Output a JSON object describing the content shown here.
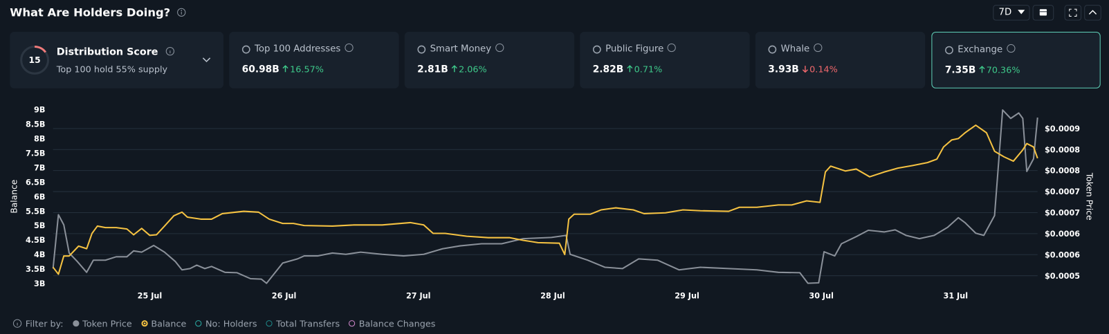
{
  "header": {
    "title": "What Are Holders Doing?",
    "period": "7D"
  },
  "distribution": {
    "score": 15,
    "title": "Distribution Score",
    "subtitle": "Top 100 hold 55% supply"
  },
  "cards": [
    {
      "label": "Top 100 Addresses",
      "value": "60.98B",
      "change": "16.57%",
      "direction": "up"
    },
    {
      "label": "Smart Money",
      "value": "2.81B",
      "change": "2.06%",
      "direction": "up"
    },
    {
      "label": "Public Figure",
      "value": "2.82B",
      "change": "0.71%",
      "direction": "up"
    },
    {
      "label": "Whale",
      "value": "3.93B",
      "change": "0.14%",
      "direction": "down"
    },
    {
      "label": "Exchange",
      "value": "7.35B",
      "change": "70.36%",
      "direction": "up"
    }
  ],
  "chart_data": {
    "type": "line",
    "ylabel": "Balance",
    "y2label": "Token Price",
    "xlim": [
      24.28,
      31.61
    ],
    "xticks": [
      {
        "value": 25,
        "label": "25 Jul"
      },
      {
        "value": 26,
        "label": "26 Jul"
      },
      {
        "value": 27,
        "label": "27 Jul"
      },
      {
        "value": 28,
        "label": "28 Jul"
      },
      {
        "value": 29,
        "label": "29 Jul"
      },
      {
        "value": 30,
        "label": "30 Jul"
      },
      {
        "value": 31,
        "label": "31 Jul"
      }
    ],
    "ylim": [
      3,
      9
    ],
    "yticks": [
      {
        "value": 3,
        "label": "3B"
      },
      {
        "value": 3.5,
        "label": "3.5B"
      },
      {
        "value": 4,
        "label": "4B"
      },
      {
        "value": 4.5,
        "label": "4.5B"
      },
      {
        "value": 5,
        "label": "5B"
      },
      {
        "value": 5.5,
        "label": "5.5B"
      },
      {
        "value": 6,
        "label": "6B"
      },
      {
        "value": 6.5,
        "label": "6.5B"
      },
      {
        "value": 7,
        "label": "7B"
      },
      {
        "value": 7.5,
        "label": "7.5B"
      },
      {
        "value": 8,
        "label": "8B"
      },
      {
        "value": 8.5,
        "label": "8.5B"
      },
      {
        "value": 9,
        "label": "9B"
      }
    ],
    "y2lim": [
      0.0005015,
      0.000915
    ],
    "y2ticks": [
      {
        "value": 0.00052,
        "label": "$0.0005"
      },
      {
        "value": 0.00057,
        "label": "$0.0006"
      },
      {
        "value": 0.00062,
        "label": "$0.0006"
      },
      {
        "value": 0.00067,
        "label": "$0.0007"
      },
      {
        "value": 0.00072,
        "label": "$0.0007"
      },
      {
        "value": 0.00077,
        "label": "$0.0008"
      },
      {
        "value": 0.00082,
        "label": "$0.0008"
      },
      {
        "value": 0.00087,
        "label": "$0.0009"
      }
    ],
    "grid": true,
    "series": [
      {
        "name": "Token Price",
        "color": "#8a9099",
        "axis": "y2",
        "x": [
          24.28,
          24.32,
          24.36,
          24.4,
          24.46,
          24.53,
          24.58,
          24.67,
          24.75,
          24.83,
          24.88,
          24.94,
          25.03,
          25.11,
          25.19,
          25.24,
          25.3,
          25.35,
          25.41,
          25.46,
          25.56,
          25.65,
          25.75,
          25.83,
          25.87,
          25.99,
          26.1,
          26.15,
          26.25,
          26.36,
          26.46,
          26.57,
          26.73,
          26.89,
          27.04,
          27.18,
          27.31,
          27.47,
          27.62,
          27.78,
          27.99,
          28.1,
          28.13,
          28.26,
          28.39,
          28.52,
          28.64,
          28.78,
          28.94,
          29.1,
          29.31,
          29.52,
          29.68,
          29.84,
          29.9,
          29.98,
          30.02,
          30.1,
          30.15,
          30.26,
          30.35,
          30.47,
          30.55,
          30.63,
          30.73,
          30.84,
          30.94,
          31.02,
          31.07,
          31.15,
          31.21,
          31.29,
          31.35,
          31.41,
          31.47,
          31.5,
          31.53,
          31.58,
          31.61
        ],
        "values": [
          0.000537,
          0.000665,
          0.000641,
          0.000574,
          0.000554,
          0.000528,
          0.000557,
          0.000557,
          0.000565,
          0.000565,
          0.000579,
          0.000576,
          0.000592,
          0.000576,
          0.000554,
          0.000534,
          0.000537,
          0.000545,
          0.000537,
          0.000542,
          0.000528,
          0.000527,
          0.000513,
          0.000512,
          0.000502,
          0.00055,
          0.00056,
          0.000567,
          0.000567,
          0.000574,
          0.000571,
          0.000576,
          0.000571,
          0.000567,
          0.000571,
          0.000584,
          0.000591,
          0.000596,
          0.000596,
          0.000608,
          0.000611,
          0.000616,
          0.000571,
          0.000557,
          0.00054,
          0.000537,
          0.00056,
          0.000557,
          0.000534,
          0.00054,
          0.000537,
          0.000534,
          0.000528,
          0.000527,
          0.000502,
          0.000503,
          0.000577,
          0.000567,
          0.000596,
          0.000613,
          0.000628,
          0.000624,
          0.000629,
          0.000616,
          0.000608,
          0.000616,
          0.000635,
          0.000658,
          0.000646,
          0.000621,
          0.000616,
          0.000663,
          0.000914,
          0.000894,
          0.000907,
          0.000894,
          0.000768,
          0.000798,
          0.000896
        ]
      },
      {
        "name": "Balance",
        "color": "#f5c242",
        "axis": "y",
        "x": [
          24.28,
          24.32,
          24.36,
          24.4,
          24.47,
          24.53,
          24.57,
          24.61,
          24.67,
          24.75,
          24.83,
          24.88,
          24.94,
          25.0,
          25.05,
          25.11,
          25.18,
          25.24,
          25.28,
          25.38,
          25.46,
          25.54,
          25.7,
          25.81,
          25.89,
          25.99,
          26.07,
          26.15,
          26.36,
          26.52,
          26.73,
          26.94,
          27.04,
          27.11,
          27.2,
          27.36,
          27.52,
          27.68,
          27.78,
          27.89,
          28.05,
          28.09,
          28.12,
          28.16,
          28.28,
          28.36,
          28.47,
          28.6,
          28.68,
          28.84,
          28.97,
          29.1,
          29.31,
          29.39,
          29.52,
          29.68,
          29.78,
          29.89,
          29.99,
          30.03,
          30.07,
          30.18,
          30.26,
          30.36,
          30.47,
          30.57,
          30.68,
          30.79,
          30.86,
          30.91,
          30.97,
          31.02,
          31.07,
          31.15,
          31.23,
          31.29,
          31.36,
          31.43,
          31.5,
          31.53,
          31.58,
          31.61
        ],
        "values": [
          3.56,
          3.32,
          3.95,
          3.95,
          4.29,
          4.2,
          4.73,
          4.98,
          4.93,
          4.93,
          4.88,
          4.68,
          4.9,
          4.66,
          4.68,
          4.98,
          5.34,
          5.46,
          5.29,
          5.22,
          5.22,
          5.41,
          5.49,
          5.46,
          5.22,
          5.07,
          5.07,
          5.0,
          4.98,
          5.02,
          5.02,
          5.1,
          5.02,
          4.73,
          4.73,
          4.63,
          4.58,
          4.58,
          4.49,
          4.41,
          4.39,
          4.0,
          5.22,
          5.39,
          5.39,
          5.54,
          5.61,
          5.54,
          5.41,
          5.44,
          5.54,
          5.51,
          5.49,
          5.63,
          5.63,
          5.71,
          5.71,
          5.85,
          5.8,
          6.85,
          7.05,
          6.88,
          6.95,
          6.68,
          6.85,
          6.98,
          7.07,
          7.17,
          7.29,
          7.71,
          7.95,
          8.0,
          8.2,
          8.46,
          8.2,
          7.56,
          7.37,
          7.22,
          7.61,
          7.83,
          7.71,
          7.32
        ]
      }
    ]
  },
  "filter_label": "Filter by:",
  "filters": [
    {
      "name": "No: Holders",
      "color": "#2bb0a8"
    },
    {
      "name": "Total Transfers",
      "color": "#1f8c8c"
    },
    {
      "name": "Balance Changes",
      "color": "#d58bd0"
    }
  ]
}
